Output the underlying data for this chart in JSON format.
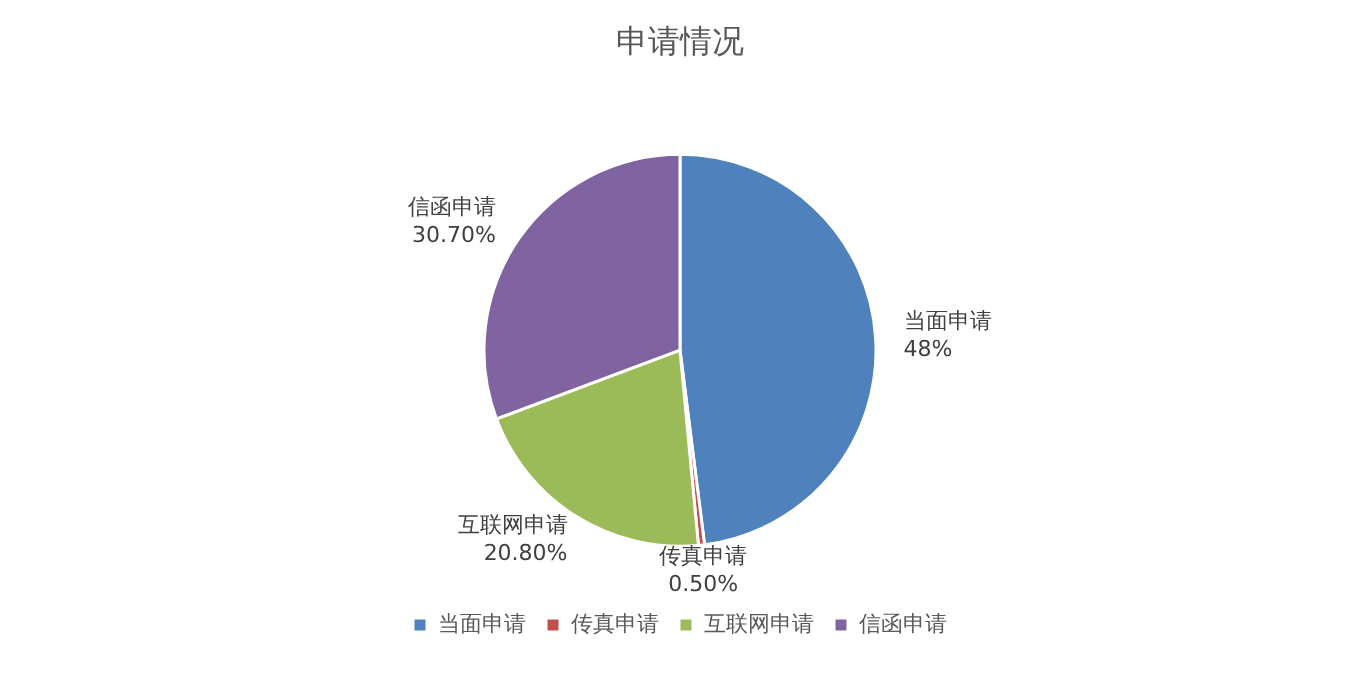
{
  "chart_data": {
    "type": "pie",
    "title": "申请情况",
    "categories": [
      "当面申请",
      "传真申请",
      "互联网申请",
      "信函申请"
    ],
    "values": [
      48,
      0.5,
      20.8,
      30.7
    ],
    "colors": [
      "#4f81bd",
      "#c0504d",
      "#9bbb59",
      "#8064a2"
    ],
    "value_labels": [
      "48%",
      "0.50%",
      "20.80%",
      "30.70%"
    ],
    "legend": "bottom"
  }
}
